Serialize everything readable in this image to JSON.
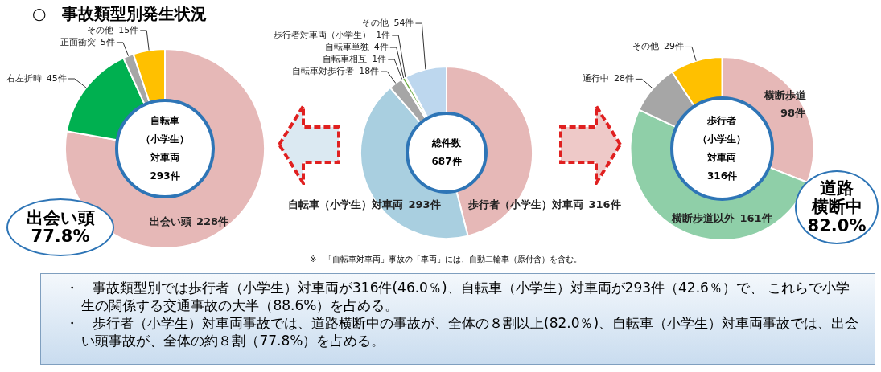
{
  "chart_data": [
    {
      "type": "donut",
      "title": "○　事故類型別発生状況",
      "categories": [
        "出会い頭",
        "右左折時",
        "正面衝突",
        "その他"
      ],
      "values": [
        228,
        45,
        5,
        15
      ],
      "colors": [
        "#e6b8b7",
        "#00b050",
        "#a6a6a6",
        "#ffc000"
      ],
      "value_labels": [
        "228件",
        "45件",
        "5件",
        "15件"
      ],
      "annotations": [
        "自転車",
        "（小学生）",
        "対車両",
        "293件",
        "出会い頭",
        "77.8%"
      ]
    },
    {
      "type": "donut",
      "categories": [
        "歩行者（小学生）対車両",
        "自転車（小学生）対車両",
        "自転車対歩行者",
        "自転車相互",
        "自転車単独",
        "歩行者対車両（小学生）",
        "その他"
      ],
      "values": [
        316,
        293,
        18,
        1,
        4,
        1,
        54
      ],
      "colors": [
        "#e6b8b7",
        "#a9cfe0",
        "#a6a6a6",
        "#f2f2f2",
        "#70ad47",
        "#e7e6e6",
        "#bdd7ee"
      ],
      "value_labels": [
        "316件",
        "293件",
        "18件",
        "1件",
        "4件",
        "1件",
        "54件"
      ],
      "annotations": [
        "総件数",
        "687件",
        "※　「自転車対車両」事故の「車両」には、自動二輪車（原付含）を含む。",
        "・　事故類型別では歩行者（小学生）対車両が316件(46.0％)、自転車（小学生）対車両が293件（42.6％）で、 これらで小学生の関係する交通事故の大半（88.6%）を占める。",
        "・　歩行者（小学生）対車両事故では、道路横断中の事故が、全体の８割以上(82.0％)、自転車（小学生）対車両事故では、出会い頭事故が、全体の約８割（77.8%）を占める。"
      ]
    },
    {
      "type": "donut",
      "categories": [
        "横断歩道",
        "横断歩道以外",
        "通行中",
        "その他"
      ],
      "values": [
        98,
        161,
        28,
        29
      ],
      "colors": [
        "#e6b8b7",
        "#8fcfa8",
        "#a6a6a6",
        "#ffc000"
      ],
      "value_labels": [
        "98件",
        "161件",
        "28件",
        "29件"
      ],
      "annotations": [
        "歩行者",
        "（小学生）",
        "対車両",
        "316件",
        "道路",
        "横断中",
        "82.0%"
      ]
    }
  ]
}
